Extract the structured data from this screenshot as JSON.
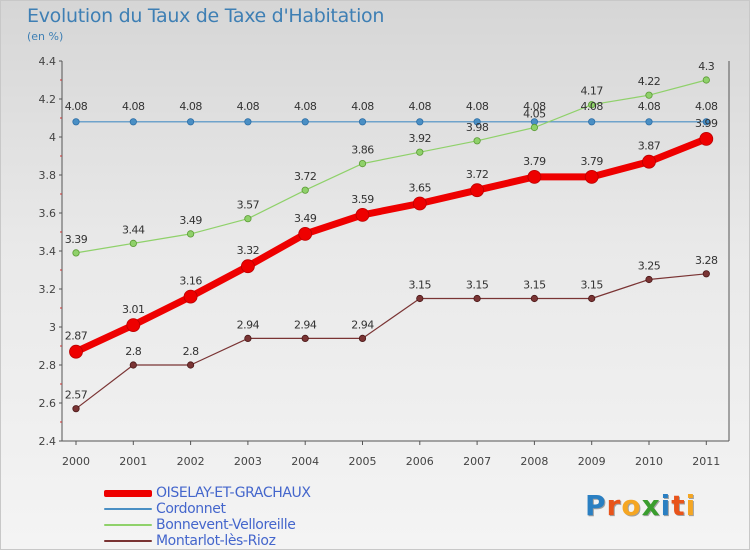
{
  "header": {
    "title": "Evolution du Taux de Taxe d'Habitation",
    "subtitle": "(en %)"
  },
  "logo": {
    "letters": [
      "P",
      "r",
      "o",
      "x",
      "i",
      "t",
      "i"
    ],
    "colors": [
      "#2a7fc2",
      "#e8541b",
      "#f5a623",
      "#3a9d2e",
      "#2a7fc2",
      "#e8541b",
      "#f5a623"
    ]
  },
  "chart_data": {
    "type": "line",
    "x": [
      "2000",
      "2001",
      "2002",
      "2003",
      "2004",
      "2005",
      "2006",
      "2007",
      "2008",
      "2009",
      "2010",
      "2011"
    ],
    "ylim": [
      2.4,
      4.4
    ],
    "yticks": [
      "2.4",
      "2.6",
      "2.8",
      "3",
      "3.2",
      "3.4",
      "3.6",
      "3.8",
      "4",
      "4.2",
      "4.4"
    ],
    "grid": false,
    "legend_position": "bottom-left",
    "series": [
      {
        "name": "Cordonnet",
        "color": "#4a8fc4",
        "values": [
          4.08,
          4.08,
          4.08,
          4.08,
          4.08,
          4.08,
          4.08,
          4.08,
          4.08,
          4.08,
          4.08,
          4.08
        ],
        "labels": [
          "4.08",
          "4.08",
          "4.08",
          "4.08",
          "4.08",
          "4.08",
          "4.08",
          "4.08",
          "4.08",
          "4.08",
          "4.08",
          "4.08"
        ]
      },
      {
        "name": "Bonnevent-Velloreille",
        "color": "#8fd16a",
        "values": [
          3.39,
          3.44,
          3.49,
          3.57,
          3.72,
          3.86,
          3.92,
          3.98,
          4.05,
          4.17,
          4.22,
          4.3
        ],
        "labels": [
          "3.39",
          "3.44",
          "3.49",
          "3.57",
          "3.72",
          "3.86",
          "3.92",
          "3.98",
          "4.05",
          "4.17",
          "4.22",
          "4.3"
        ]
      },
      {
        "name": "Montarlot-lès-Rioz",
        "color": "#7a3434",
        "values": [
          2.57,
          2.8,
          2.8,
          2.94,
          2.94,
          2.94,
          3.15,
          3.15,
          3.15,
          3.15,
          3.25,
          3.28
        ],
        "labels": [
          "2.57",
          "2.8",
          "2.8",
          "2.94",
          "2.94",
          "2.94",
          "3.15",
          "3.15",
          "3.15",
          "3.15",
          "3.25",
          "3.28"
        ]
      },
      {
        "name": "OISELAY-ET-GRACHAUX",
        "color": "#ee0000",
        "values": [
          2.87,
          3.01,
          3.16,
          3.32,
          3.49,
          3.59,
          3.65,
          3.72,
          3.79,
          3.79,
          3.87,
          3.99
        ],
        "labels": [
          "2.87",
          "3.01",
          "3.16",
          "3.32",
          "3.49",
          "3.59",
          "3.65",
          "3.72",
          "3.79",
          "3.79",
          "3.87",
          "3.99"
        ]
      }
    ],
    "legend_order": [
      "OISELAY-ET-GRACHAUX",
      "Cordonnet",
      "Bonnevent-Velloreille",
      "Montarlot-lès-Rioz"
    ]
  }
}
